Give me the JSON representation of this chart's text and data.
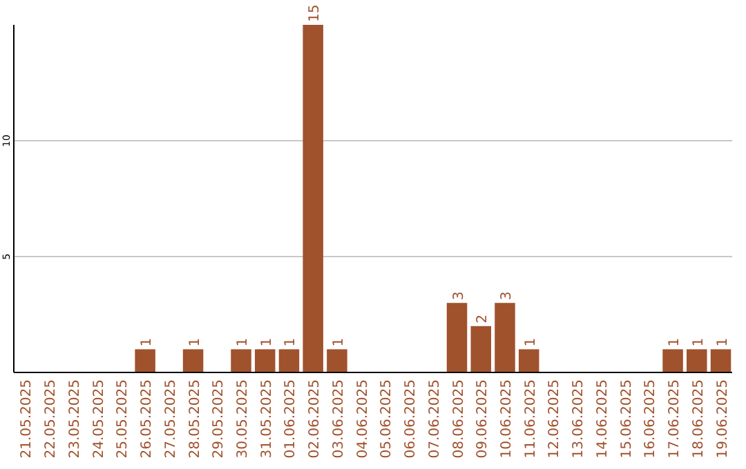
{
  "chart_data": {
    "type": "bar",
    "categories": [
      "21.05.2025",
      "22.05.2025",
      "23.05.2025",
      "24.05.2025",
      "25.05.2025",
      "26.05.2025",
      "27.05.2025",
      "28.05.2025",
      "29.05.2025",
      "30.05.2025",
      "31.05.2025",
      "01.06.2025",
      "02.06.2025",
      "03.06.2025",
      "04.06.2025",
      "05.06.2025",
      "06.06.2025",
      "07.06.2025",
      "08.06.2025",
      "09.06.2025",
      "10.06.2025",
      "11.06.2025",
      "12.06.2025",
      "13.06.2025",
      "14.06.2025",
      "15.06.2025",
      "16.06.2025",
      "17.06.2025",
      "18.06.2025",
      "19.06.2025"
    ],
    "values": [
      0,
      0,
      0,
      0,
      0,
      1,
      0,
      1,
      0,
      1,
      1,
      1,
      15,
      1,
      0,
      0,
      0,
      0,
      3,
      2,
      3,
      1,
      0,
      0,
      0,
      0,
      0,
      1,
      1,
      1
    ],
    "value_labels": [
      null,
      null,
      null,
      null,
      null,
      "1",
      null,
      "1",
      null,
      "1",
      "1",
      "1",
      "15",
      "1",
      null,
      null,
      null,
      null,
      "3",
      "2",
      "3",
      "1",
      null,
      null,
      null,
      null,
      null,
      "1",
      "1",
      "1"
    ],
    "color": "#a0522d",
    "ylim": [
      0,
      15
    ],
    "yticks": [
      5,
      10
    ],
    "grid": "y"
  }
}
